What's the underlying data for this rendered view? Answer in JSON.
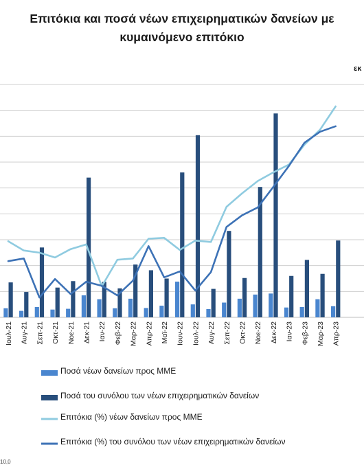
{
  "title_line1": "Επιτόκια και ποσά νέων επιχειρηματικών δανείων με",
  "title_line2": "κυμαινόμενο επιτόκιο",
  "unit_fragment": "εκ",
  "bottom_fragment": "10,0",
  "colors": {
    "bar_mme": "#4a86cf",
    "bar_total": "#284e7c",
    "line_mme": "#8fcbe0",
    "line_total": "#3d72b6",
    "grid": "#cfcfcf"
  },
  "chart_data": {
    "type": "bar",
    "categories": [
      "Ιουλ-21",
      "Αυγ-21",
      "Σεπ-21",
      "Οκτ-21",
      "Νοε-21",
      "Δεκ-21",
      "Ιαν-22",
      "Φεβ-22",
      "Μαρ-22",
      "Απρ-22",
      "Μαϊ-22",
      "Ιουν-22",
      "Ιουλ-22",
      "Αυγ-22",
      "Σεπ-22",
      "Οκτ-22",
      "Νοε-22",
      "Δεκ-22",
      "Ιαν-23",
      "Φεβ-23",
      "Μαρ-23",
      "Απρ-23"
    ],
    "series": [
      {
        "name": "Ποσά νέων δανείων προς ΜΜΕ",
        "kind": "bar",
        "axis": "left",
        "values": [
          0.35,
          0.25,
          0.4,
          0.3,
          0.33,
          0.85,
          0.7,
          0.35,
          0.72,
          0.36,
          0.45,
          1.38,
          0.5,
          0.32,
          0.57,
          0.72,
          0.88,
          0.92,
          0.38,
          0.4,
          0.7,
          0.43
        ]
      },
      {
        "name": "Ποσά του συνόλου των νέων επιχειρηματικών δανείων",
        "kind": "bar",
        "axis": "left",
        "values": [
          1.35,
          0.98,
          2.7,
          1.15,
          1.4,
          5.4,
          1.37,
          1.12,
          2.04,
          1.82,
          1.5,
          5.6,
          7.04,
          1.1,
          3.34,
          1.52,
          5.04,
          7.88,
          1.6,
          2.22,
          1.68,
          2.97
        ]
      },
      {
        "name": "Επιτόκια (%) νέων δανείων προς ΜΜΕ",
        "kind": "line",
        "axis": "right",
        "values": [
          5.55,
          4.88,
          4.72,
          4.37,
          4.98,
          5.32,
          2.26,
          4.2,
          4.3,
          5.74,
          5.8,
          4.92,
          5.6,
          5.5,
          8.07,
          9.05,
          9.95,
          10.58,
          11.15,
          12.6,
          13.7,
          15.4
        ]
      },
      {
        "name": "Επιτόκια (%) του συνόλου των νέων επιχειρηματικών δανείων",
        "kind": "line",
        "axis": "right",
        "values": [
          4.1,
          4.3,
          1.45,
          2.8,
          1.7,
          2.6,
          2.3,
          1.6,
          2.68,
          5.2,
          2.92,
          3.35,
          1.95,
          3.3,
          6.6,
          7.45,
          8.02,
          9.52,
          11.05,
          12.75,
          13.55,
          13.95
        ]
      }
    ],
    "ylim_left": [
      0,
      9
    ],
    "ylim_right": [
      0,
      17
    ],
    "grid": true,
    "legend": "bottom"
  }
}
